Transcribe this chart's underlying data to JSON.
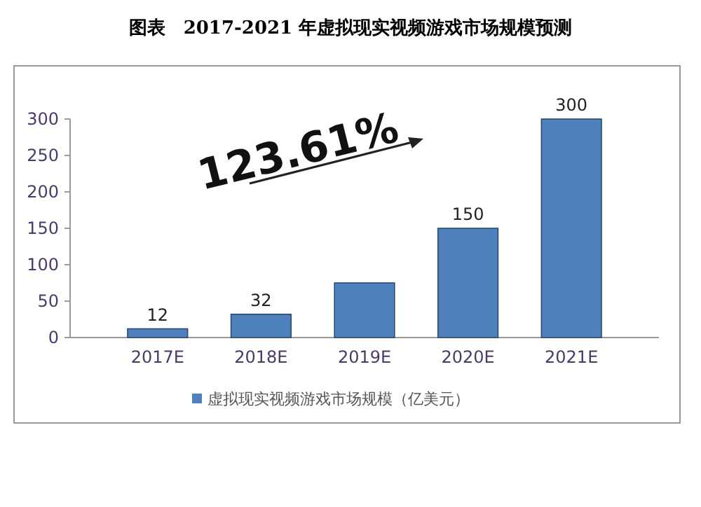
{
  "chart_data": {
    "type": "bar",
    "title": "图表　2017-2021 年虚拟现实视频游戏市场规模预测",
    "categories": [
      "2017E",
      "2018E",
      "2019E",
      "2020E",
      "2021E"
    ],
    "series": [
      {
        "name": "虚拟现实视频游戏市场规模（亿美元）",
        "color": "#4f81bd",
        "values": [
          12,
          32,
          75,
          150,
          300
        ],
        "value_labels": [
          "12",
          "32",
          null,
          "150",
          "300"
        ]
      }
    ],
    "ylim": [
      0,
      300
    ],
    "yticks": [
      0,
      50,
      100,
      150,
      200,
      250,
      300
    ],
    "grid": false,
    "legend": "bottom",
    "annotations": [
      "123.61%"
    ]
  }
}
